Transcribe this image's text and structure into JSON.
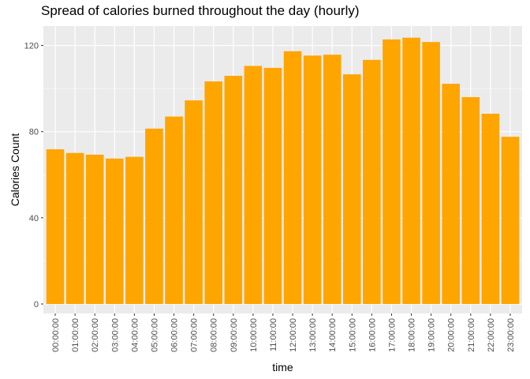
{
  "chart_data": {
    "type": "bar",
    "title": "Spread of calories burned throughout the day (hourly)",
    "xlabel": "time",
    "ylabel": "Calories Count",
    "categories": [
      "00:00:00",
      "01:00:00",
      "02:00:00",
      "03:00:00",
      "04:00:00",
      "05:00:00",
      "06:00:00",
      "07:00:00",
      "08:00:00",
      "09:00:00",
      "10:00:00",
      "11:00:00",
      "12:00:00",
      "13:00:00",
      "14:00:00",
      "15:00:00",
      "16:00:00",
      "17:00:00",
      "18:00:00",
      "19:00:00",
      "20:00:00",
      "21:00:00",
      "22:00:00",
      "23:00:00"
    ],
    "values": [
      71.8,
      70.1,
      69.3,
      67.5,
      68.3,
      81.4,
      87.0,
      94.5,
      103.3,
      105.9,
      110.5,
      109.6,
      117.3,
      115.3,
      115.7,
      106.6,
      113.3,
      122.8,
      123.6,
      121.6,
      102.2,
      96.0,
      88.3,
      77.6
    ],
    "ylim": [
      -4.4,
      129
    ],
    "yticks": [
      0,
      40,
      80,
      120
    ],
    "bar_color": "#FFA500",
    "panel_background": "#EBEBEB",
    "grid_color": "#FFFFFF",
    "grid": true,
    "legend": "none"
  }
}
